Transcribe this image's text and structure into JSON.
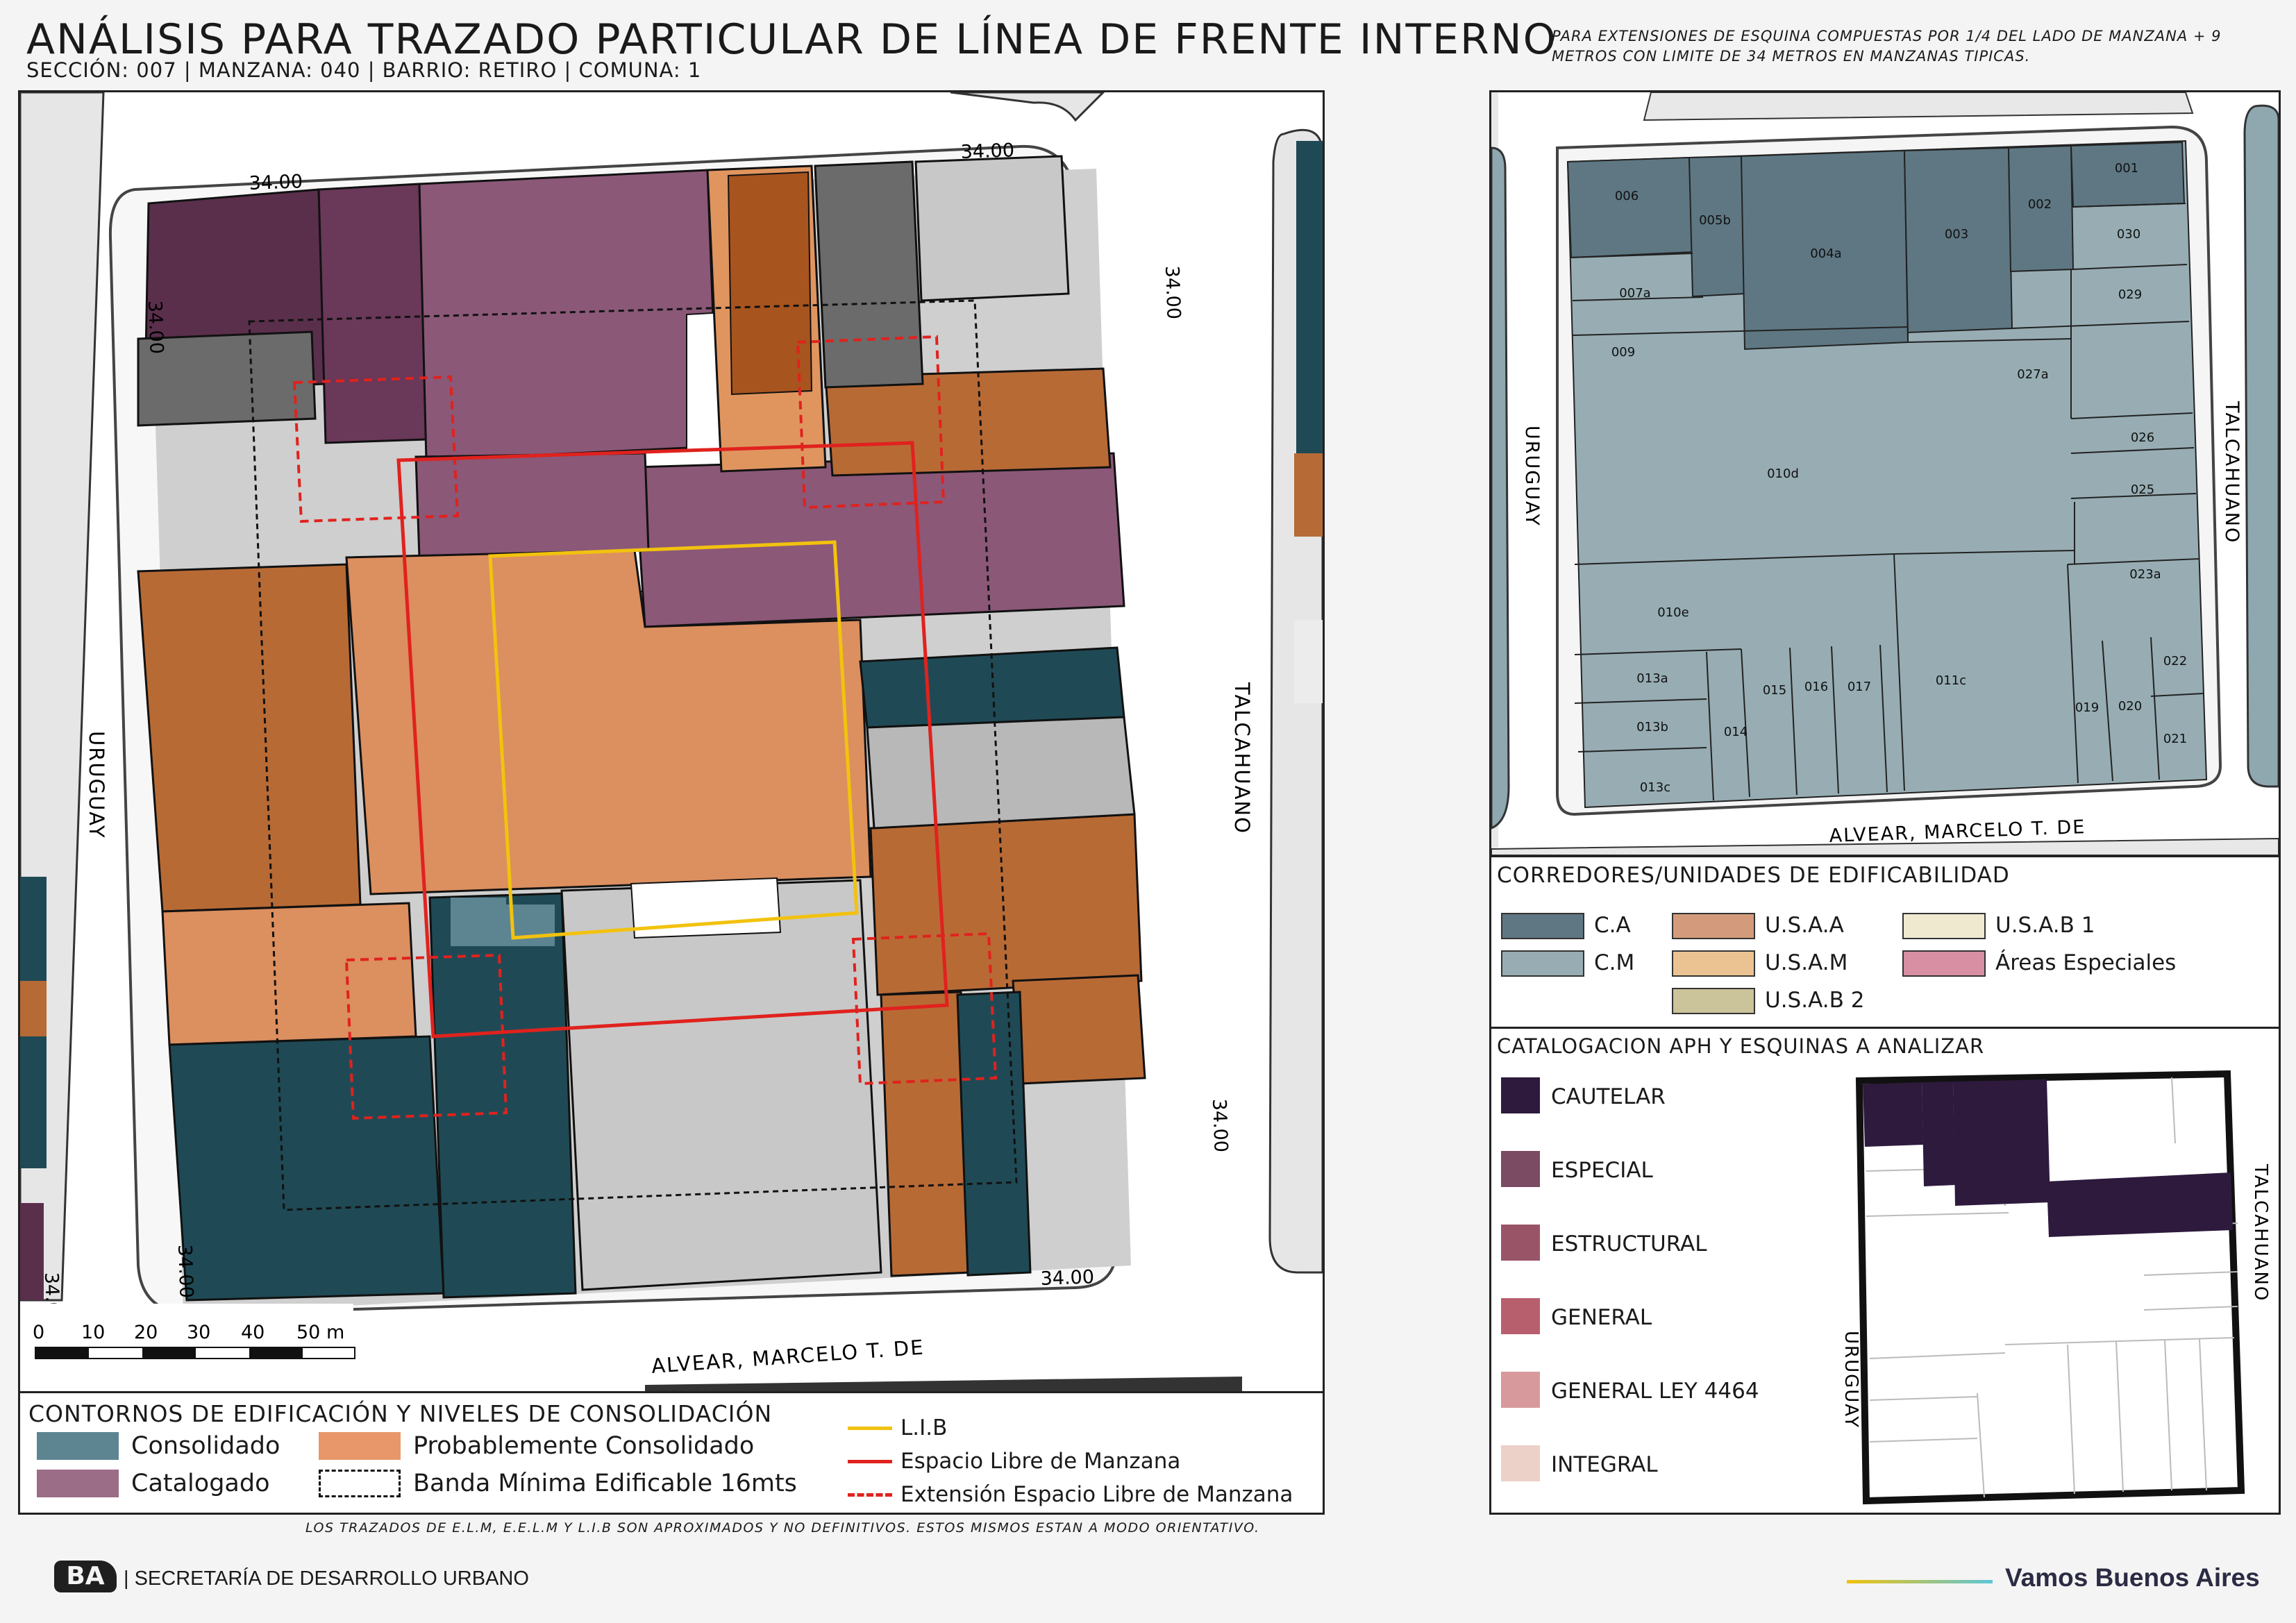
{
  "header": {
    "title": "ANÁLISIS PARA TRAZADO PARTICULAR DE LÍNEA DE FRENTE INTERNO",
    "subtitle": "SECCIÓN: 007 |  MANZANA: 040 | BARRIO: RETIRO | COMUNA: 1",
    "note": "PARA EXTENSIONES DE ESQUINA COMPUESTAS POR 1/4 DEL LADO DE MANZANA + 9 METROS CON LIMITE DE 34 METROS EN MANZANAS TIPICAS."
  },
  "main_map": {
    "streets": {
      "west": "URUGUAY",
      "east": "TALCAHUANO",
      "south": "ALVEAR, MARCELO T. DE"
    },
    "corner_labels": [
      "34.00",
      "34.00",
      "34.00",
      "34.00",
      "34.00",
      "34.00",
      "34.00",
      "34.00"
    ],
    "scale": {
      "ticks": [
        "0",
        "10",
        "20",
        "30",
        "40",
        "50 m"
      ]
    }
  },
  "legend_main": {
    "title": "CONTORNOS DE EDIFICACIÓN Y NIVELES DE CONSOLIDACIÓN",
    "items": [
      {
        "label": "Consolidado",
        "color": "#5d8591"
      },
      {
        "label": "Probablemente Consolidado",
        "color": "#e8976a"
      },
      {
        "label": "Catalogado",
        "color": "#9b6d86"
      },
      {
        "label": "Banda Mínima Edificable 16mts",
        "color": "#ffffff"
      }
    ],
    "lines": [
      {
        "label": "L.I.B",
        "color": "#f2c20f"
      },
      {
        "label": "Espacio Libre de Manzana",
        "color": "#e0221e"
      },
      {
        "label": "Extensión Espacio Libre de Manzana",
        "color": "#e0221e"
      }
    ]
  },
  "parcel_map": {
    "streets": {
      "west": "URUGUAY",
      "east": "TALCAHUANO",
      "south": "ALVEAR, MARCELO T. DE"
    },
    "parcels": [
      "006",
      "005b",
      "004a",
      "003",
      "002",
      "001",
      "030",
      "029",
      "007a",
      "009",
      "027a",
      "026",
      "025",
      "010d",
      "023a",
      "010e",
      "013a",
      "013b",
      "013c",
      "014",
      "015",
      "016",
      "017",
      "011c",
      "019",
      "020",
      "021",
      "022"
    ]
  },
  "legend_corredores": {
    "title": "CORREDORES/UNIDADES DE EDIFICABILIDAD",
    "items": [
      {
        "label": "C.A",
        "color": "#5e7783"
      },
      {
        "label": "C.M",
        "color": "#97adb3"
      },
      {
        "label": "U.S.A.A",
        "color": "#d39b7b"
      },
      {
        "label": "U.S.A.M",
        "color": "#ebc392"
      },
      {
        "label": "U.S.A.B 2",
        "color": "#cbc39a"
      },
      {
        "label": "U.S.A.B 1",
        "color": "#efe9cf"
      },
      {
        "label": "Áreas Especiales",
        "color": "#d88fa4"
      }
    ]
  },
  "legend_catalogacion": {
    "title": "CATALOGACION APH Y ESQUINAS A ANALIZAR",
    "items": [
      {
        "label": "CAUTELAR",
        "color": "#2e1a3d"
      },
      {
        "label": "ESPECIAL",
        "color": "#7a4b63"
      },
      {
        "label": "ESTRUCTURAL",
        "color": "#9a5468"
      },
      {
        "label": "GENERAL",
        "color": "#b85f6e"
      },
      {
        "label": "GENERAL LEY 4464",
        "color": "#d8999c"
      },
      {
        "label": "INTEGRAL",
        "color": "#ecd1c8"
      }
    ],
    "mini_streets": {
      "west": "URUGUAY",
      "east": "TALCAHUANO"
    }
  },
  "footer": {
    "disclaimer": "LOS TRAZADOS DE E.L.M, E.E.L.M Y L.I.B SON APROXIMADOS Y NO DEFINITIVOS. ESTOS MISMOS ESTAN A MODO ORIENTATIVO.",
    "logo": "BA",
    "secretaria": "| SECRETARÍA DE DESARROLLO URBANO",
    "brand": "Vamos Buenos Aires"
  }
}
